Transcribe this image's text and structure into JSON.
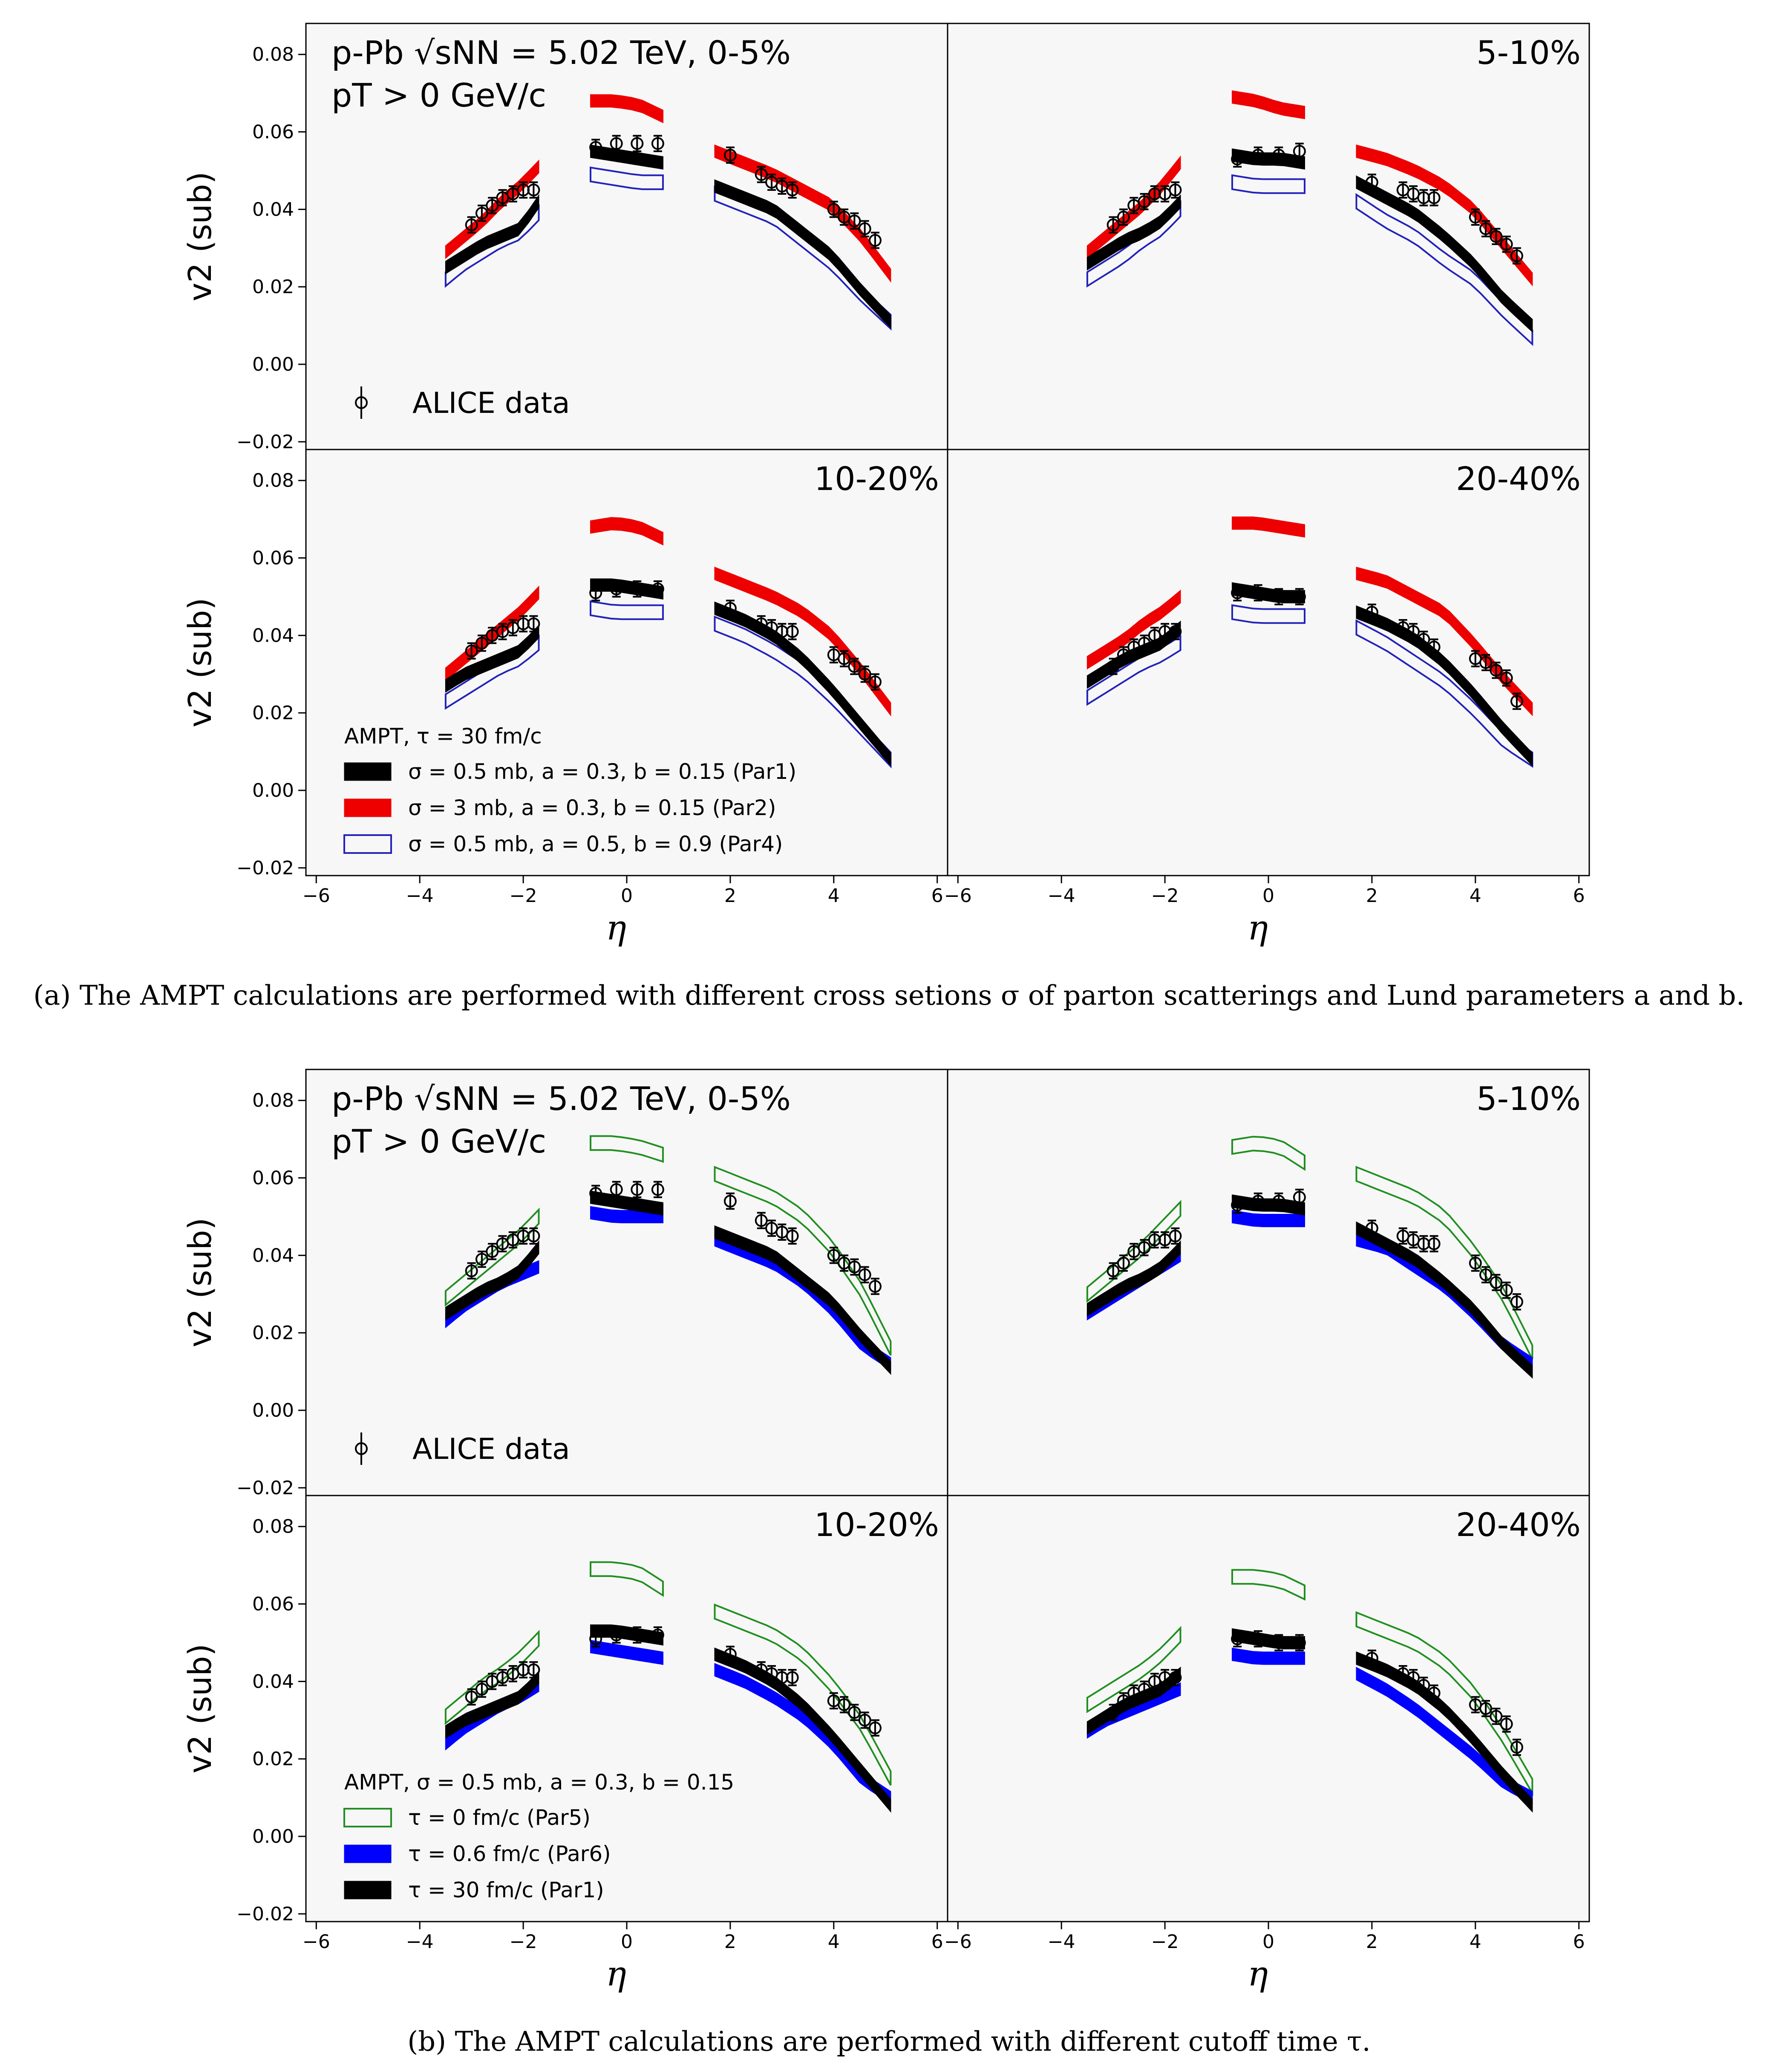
{
  "figure": {
    "caption_a": "(a) The AMPT calculations are performed with different cross setions σ of parton scatterings and Lund parameters a and b.",
    "caption_b": "(b) The AMPT calculations are performed with different cutoff time τ."
  },
  "colors": {
    "data": "#000000",
    "par1": "#000000",
    "par2": "#ee0000",
    "par4": "#2222bb",
    "par5": "#1f8f1f",
    "par6": "#0000ff",
    "axes_bg": "#f7f7f7"
  },
  "axes": {
    "ylabel": "v2 (sub)",
    "xlabel": "η",
    "xlim": [
      -6.2,
      6.2
    ],
    "ylim": [
      -0.022,
      0.088
    ],
    "xticks": [
      "−6",
      "−4",
      "−2",
      "0",
      "2",
      "4",
      "6"
    ],
    "yticks": [
      "−0.02",
      "0.00",
      "0.02",
      "0.04",
      "0.06",
      "0.08"
    ]
  },
  "panels": {
    "header_line1": "p-Pb √sNN = 5.02 TeV, 0-5%",
    "header_line2": "pT > 0 GeV/c",
    "c510": "5-10%",
    "c1020": "10-20%",
    "c2040": "20-40%",
    "data_legend": "ALICE data"
  },
  "legend_a": {
    "title": "AMPT, τ = 30 fm/c",
    "items": [
      "σ = 0.5 mb, a = 0.3, b = 0.15 (Par1)",
      "σ = 3 mb, a = 0.3, b = 0.15 (Par2)",
      "σ = 0.5 mb, a = 0.5, b = 0.9 (Par4)"
    ]
  },
  "legend_b": {
    "title": "AMPT, σ = 0.5 mb, a = 0.3, b = 0.15",
    "items": [
      "τ = 0 fm/c (Par5)",
      "τ = 0.6 fm/c (Par6)",
      "τ = 30 fm/c (Par1)"
    ]
  },
  "chart_data": {
    "type": "scatter",
    "x_segments": [
      {
        "eta": [
          -3.5,
          -3.3,
          -3.1,
          -2.9,
          -2.7,
          -2.5,
          -2.3,
          -2.1,
          -1.9,
          -1.7
        ]
      },
      {
        "eta": [
          -0.7,
          -0.5,
          -0.3,
          -0.1,
          0.1,
          0.3,
          0.5,
          0.7
        ]
      },
      {
        "eta": [
          1.7,
          1.9,
          2.1,
          2.3,
          2.5,
          2.7,
          2.9,
          3.1,
          3.3,
          3.5,
          3.7,
          3.9,
          4.1,
          4.3,
          4.5,
          4.7,
          4.9,
          5.1
        ]
      }
    ],
    "alice_eta": [
      -3.0,
      -2.8,
      -2.6,
      -2.4,
      -2.2,
      -2.0,
      -1.8,
      -0.6,
      -0.2,
      0.2,
      0.6,
      2.0,
      2.6,
      2.8,
      3.0,
      3.2,
      4.0,
      4.2,
      4.4,
      4.6,
      4.8
    ],
    "panels": [
      {
        "figure": "a",
        "centrality": "0-5%",
        "alice": [
          0.036,
          0.039,
          0.041,
          0.043,
          0.044,
          0.045,
          0.045,
          0.056,
          0.057,
          0.057,
          0.057,
          0.054,
          0.049,
          0.047,
          0.046,
          0.045,
          0.04,
          0.038,
          0.037,
          0.035,
          0.032
        ],
        "par1": [
          [
            0.025,
            0.028,
            0.031,
            0.033,
            0.035,
            0.042
          ],
          [
            0.055,
            0.054,
            0.053,
            0.052
          ],
          [
            0.046,
            0.043,
            0.04,
            0.034,
            0.028,
            0.019,
            0.011
          ]
        ],
        "par2": [
          [
            0.029,
            0.033,
            0.037,
            0.042,
            0.046,
            0.051
          ],
          [
            0.068,
            0.068,
            0.067,
            0.064
          ],
          [
            0.055,
            0.052,
            0.049,
            0.045,
            0.041,
            0.033,
            0.023
          ]
        ],
        "par4": [
          [
            0.022,
            0.026,
            0.029,
            0.032,
            0.034,
            0.039
          ],
          [
            0.049,
            0.048,
            0.047,
            0.047
          ],
          [
            0.044,
            0.041,
            0.038,
            0.032,
            0.026,
            0.018,
            0.011
          ]
        ]
      },
      {
        "figure": "a",
        "centrality": "5-10%",
        "alice": [
          0.036,
          0.038,
          0.041,
          0.042,
          0.044,
          0.044,
          0.045,
          0.053,
          0.054,
          0.054,
          0.055,
          0.047,
          0.045,
          0.044,
          0.043,
          0.043,
          0.038,
          0.035,
          0.033,
          0.031,
          0.028
        ],
        "par1": [
          [
            0.026,
            0.029,
            0.032,
            0.034,
            0.037,
            0.042
          ],
          [
            0.054,
            0.053,
            0.053,
            0.052
          ],
          [
            0.047,
            0.043,
            0.039,
            0.033,
            0.026,
            0.017,
            0.01
          ]
        ],
        "par2": [
          [
            0.029,
            0.033,
            0.037,
            0.041,
            0.046,
            0.052
          ],
          [
            0.069,
            0.068,
            0.066,
            0.065
          ],
          [
            0.055,
            0.053,
            0.05,
            0.046,
            0.04,
            0.031,
            0.022
          ]
        ],
        "par4": [
          [
            0.022,
            0.025,
            0.028,
            0.032,
            0.035,
            0.04
          ],
          [
            0.047,
            0.046,
            0.046,
            0.046
          ],
          [
            0.042,
            0.037,
            0.033,
            0.027,
            0.022,
            0.014,
            0.007
          ]
        ]
      },
      {
        "figure": "a",
        "centrality": "10-20%",
        "alice": [
          0.036,
          0.038,
          0.04,
          0.041,
          0.042,
          0.043,
          0.043,
          0.051,
          0.052,
          0.052,
          0.052,
          0.047,
          0.043,
          0.042,
          0.041,
          0.041,
          0.035,
          0.034,
          0.032,
          0.03,
          0.028
        ],
        "par1": [
          [
            0.027,
            0.03,
            0.032,
            0.034,
            0.036,
            0.041
          ],
          [
            0.053,
            0.053,
            0.052,
            0.051
          ],
          [
            0.047,
            0.044,
            0.04,
            0.034,
            0.026,
            0.017,
            0.008
          ]
        ],
        "par2": [
          [
            0.03,
            0.034,
            0.038,
            0.042,
            0.046,
            0.051
          ],
          [
            0.068,
            0.069,
            0.068,
            0.065
          ],
          [
            0.056,
            0.053,
            0.05,
            0.046,
            0.04,
            0.031,
            0.021
          ]
        ],
        "par4": [
          [
            0.023,
            0.026,
            0.029,
            0.032,
            0.034,
            0.038
          ],
          [
            0.047,
            0.046,
            0.046,
            0.046
          ],
          [
            0.043,
            0.04,
            0.036,
            0.031,
            0.024,
            0.016,
            0.008
          ]
        ]
      },
      {
        "figure": "a",
        "centrality": "20-40%",
        "alice": [
          0.032,
          0.035,
          0.037,
          0.038,
          0.04,
          0.041,
          0.041,
          0.051,
          0.051,
          0.05,
          0.05,
          0.046,
          0.042,
          0.041,
          0.039,
          0.037,
          0.034,
          0.033,
          0.031,
          0.029,
          0.023
        ],
        "par1": [
          [
            0.028,
            0.031,
            0.034,
            0.036,
            0.038,
            0.042
          ],
          [
            0.052,
            0.051,
            0.05,
            0.05
          ],
          [
            0.046,
            0.043,
            0.039,
            0.033,
            0.025,
            0.016,
            0.008
          ]
        ],
        "par2": [
          [
            0.033,
            0.036,
            0.039,
            0.043,
            0.046,
            0.05
          ],
          [
            0.069,
            0.069,
            0.068,
            0.067
          ],
          [
            0.056,
            0.054,
            0.05,
            0.046,
            0.038,
            0.029,
            0.021
          ]
        ],
        "par4": [
          [
            0.024,
            0.027,
            0.03,
            0.033,
            0.035,
            0.038
          ],
          [
            0.046,
            0.045,
            0.045,
            0.045
          ],
          [
            0.042,
            0.038,
            0.033,
            0.028,
            0.021,
            0.013,
            0.008
          ]
        ]
      },
      {
        "figure": "b",
        "centrality": "0-5%",
        "alice": [
          0.036,
          0.039,
          0.041,
          0.043,
          0.044,
          0.045,
          0.045,
          0.056,
          0.057,
          0.057,
          0.057,
          0.054,
          0.049,
          0.047,
          0.046,
          0.045,
          0.04,
          0.038,
          0.037,
          0.035,
          0.032
        ],
        "par5": [
          [
            0.029,
            0.033,
            0.037,
            0.041,
            0.045,
            0.05
          ],
          [
            0.069,
            0.069,
            0.068,
            0.066
          ],
          [
            0.061,
            0.058,
            0.055,
            0.05,
            0.042,
            0.031,
            0.016
          ]
        ],
        "par6": [
          [
            0.023,
            0.027,
            0.03,
            0.033,
            0.035,
            0.037
          ],
          [
            0.051,
            0.05,
            0.05,
            0.05
          ],
          [
            0.044,
            0.041,
            0.038,
            0.033,
            0.026,
            0.017,
            0.012
          ]
        ],
        "par1": [
          [
            0.025,
            0.028,
            0.031,
            0.033,
            0.036,
            0.042
          ],
          [
            0.055,
            0.054,
            0.053,
            0.052
          ],
          [
            0.046,
            0.043,
            0.04,
            0.034,
            0.028,
            0.019,
            0.011
          ]
        ]
      },
      {
        "figure": "b",
        "centrality": "5-10%",
        "alice": [
          0.036,
          0.038,
          0.041,
          0.042,
          0.044,
          0.044,
          0.045,
          0.053,
          0.054,
          0.054,
          0.055,
          0.047,
          0.045,
          0.044,
          0.043,
          0.043,
          0.038,
          0.035,
          0.033,
          0.031,
          0.028
        ],
        "par5": [
          [
            0.03,
            0.034,
            0.038,
            0.042,
            0.047,
            0.052
          ],
          [
            0.068,
            0.069,
            0.068,
            0.064
          ],
          [
            0.061,
            0.058,
            0.055,
            0.05,
            0.041,
            0.03,
            0.015
          ]
        ],
        "par6": [
          [
            0.025,
            0.028,
            0.031,
            0.034,
            0.037,
            0.04
          ],
          [
            0.05,
            0.049,
            0.049,
            0.049
          ],
          [
            0.044,
            0.042,
            0.037,
            0.032,
            0.025,
            0.017,
            0.012
          ]
        ],
        "par1": [
          [
            0.026,
            0.029,
            0.032,
            0.034,
            0.037,
            0.042
          ],
          [
            0.054,
            0.053,
            0.053,
            0.052
          ],
          [
            0.047,
            0.043,
            0.039,
            0.033,
            0.026,
            0.017,
            0.01
          ]
        ]
      },
      {
        "figure": "b",
        "centrality": "10-20%",
        "alice": [
          0.036,
          0.038,
          0.04,
          0.041,
          0.042,
          0.043,
          0.043,
          0.051,
          0.052,
          0.052,
          0.052,
          0.047,
          0.043,
          0.042,
          0.041,
          0.041,
          0.035,
          0.034,
          0.032,
          0.03,
          0.028
        ],
        "par5": [
          [
            0.031,
            0.035,
            0.039,
            0.042,
            0.046,
            0.051
          ],
          [
            0.069,
            0.069,
            0.068,
            0.064
          ],
          [
            0.058,
            0.055,
            0.052,
            0.047,
            0.039,
            0.029,
            0.015
          ]
        ],
        "par6": [
          [
            0.024,
            0.028,
            0.031,
            0.034,
            0.036,
            0.039
          ],
          [
            0.049,
            0.048,
            0.047,
            0.046
          ],
          [
            0.043,
            0.04,
            0.036,
            0.031,
            0.024,
            0.015,
            0.01
          ]
        ],
        "par1": [
          [
            0.027,
            0.03,
            0.032,
            0.034,
            0.036,
            0.041
          ],
          [
            0.053,
            0.053,
            0.052,
            0.051
          ],
          [
            0.047,
            0.044,
            0.04,
            0.034,
            0.026,
            0.017,
            0.008
          ]
        ]
      },
      {
        "figure": "b",
        "centrality": "20-40%",
        "alice": [
          0.032,
          0.035,
          0.037,
          0.038,
          0.04,
          0.041,
          0.041,
          0.051,
          0.051,
          0.05,
          0.05,
          0.046,
          0.042,
          0.041,
          0.039,
          0.037,
          0.034,
          0.033,
          0.031,
          0.029,
          0.023
        ],
        "par5": [
          [
            0.034,
            0.037,
            0.04,
            0.043,
            0.047,
            0.052
          ],
          [
            0.067,
            0.067,
            0.066,
            0.063
          ],
          [
            0.056,
            0.053,
            0.05,
            0.045,
            0.037,
            0.026,
            0.013
          ]
        ],
        "par6": [
          [
            0.027,
            0.03,
            0.032,
            0.034,
            0.036,
            0.038
          ],
          [
            0.047,
            0.046,
            0.046,
            0.046
          ],
          [
            0.042,
            0.038,
            0.033,
            0.027,
            0.021,
            0.014,
            0.01
          ]
        ],
        "par1": [
          [
            0.028,
            0.031,
            0.034,
            0.036,
            0.038,
            0.042
          ],
          [
            0.052,
            0.051,
            0.05,
            0.05
          ],
          [
            0.046,
            0.043,
            0.039,
            0.033,
            0.025,
            0.016,
            0.008
          ]
        ]
      }
    ]
  }
}
